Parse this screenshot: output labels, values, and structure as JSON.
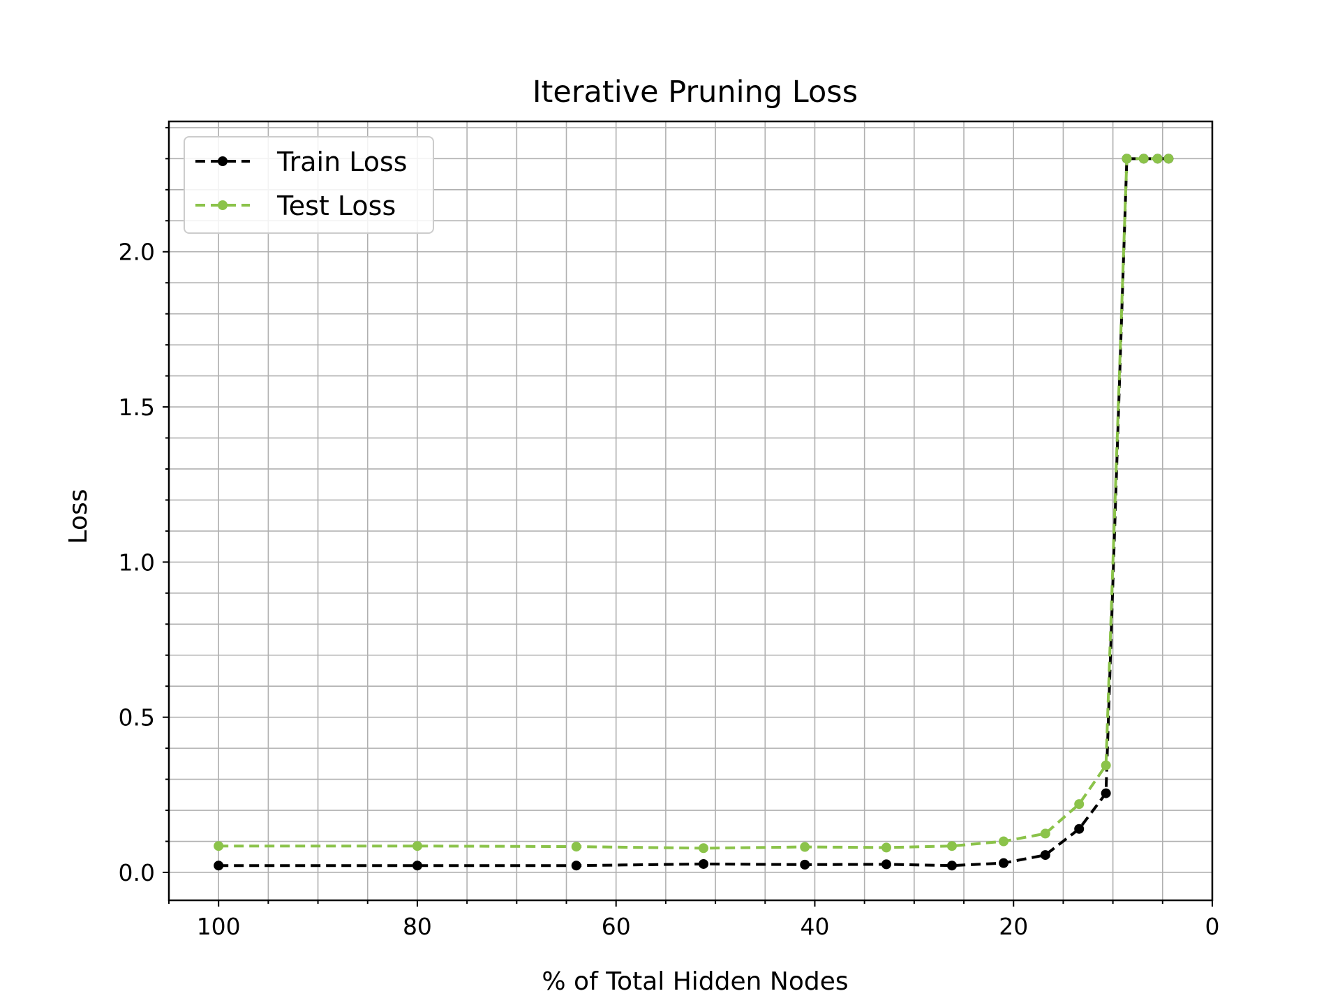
{
  "chart_data": {
    "type": "line",
    "title": "Iterative Pruning Loss",
    "xlabel": "% of Total Hidden Nodes",
    "ylabel": "Loss",
    "xlim": [
      105,
      0
    ],
    "ylim": [
      -0.09,
      2.42
    ],
    "x_major_ticks": [
      100,
      80,
      60,
      40,
      20,
      0
    ],
    "x_tick_labels": [
      "100",
      "80",
      "60",
      "40",
      "20",
      "0"
    ],
    "x_minor_step": 5,
    "y_major_ticks": [
      0.0,
      0.5,
      1.0,
      1.5,
      2.0
    ],
    "y_tick_labels": [
      "0.0",
      "0.5",
      "1.0",
      "1.5",
      "2.0"
    ],
    "y_minor_step": 0.1,
    "grid": true,
    "legend_position": "top-left",
    "x": [
      100,
      80,
      64,
      51.2,
      41,
      32.8,
      26.2,
      21,
      16.8,
      13.4,
      10.7,
      8.6,
      6.9,
      5.5,
      4.4
    ],
    "series": [
      {
        "name": "Train Loss",
        "color": "#000000",
        "values": [
          0.022,
          0.022,
          0.022,
          0.027,
          0.025,
          0.026,
          0.022,
          0.03,
          0.056,
          0.14,
          0.255,
          2.3,
          2.3,
          2.3,
          2.3
        ]
      },
      {
        "name": "Test Loss",
        "color": "#8bc34a",
        "values": [
          0.085,
          0.085,
          0.083,
          0.078,
          0.082,
          0.08,
          0.085,
          0.1,
          0.125,
          0.22,
          0.345,
          2.3,
          2.3,
          2.3,
          2.3
        ]
      }
    ]
  }
}
